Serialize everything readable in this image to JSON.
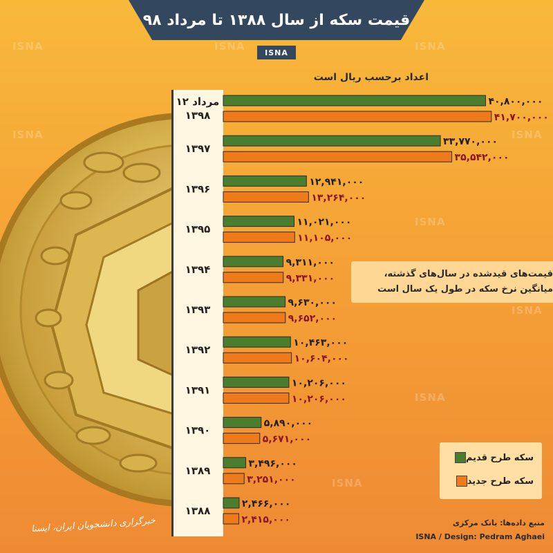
{
  "page": {
    "title": "قیمت سکه از سال ۱۳۸۸ تا مرداد ۹۸",
    "tag": "ISNA",
    "unit_note": "اعداد برحسب ریال است",
    "note_line1": "قیمت‌های قیدشده در سال‌های گذشته،",
    "note_line2": "میانگین نرخ سکه در طول یک سال است",
    "source": "منبع داده‌ها: بانک مرکزی",
    "credit": "ISNA / Design: Pedram Aghaei",
    "agency": "خبرگزاری دانشجویان ایران، ایسنا",
    "watermark": "ISNA"
  },
  "colors": {
    "old": "#4b7d2e",
    "new": "#ee7a1a",
    "old_label": "#1f1f1f",
    "new_label": "#8a1523"
  },
  "chart_data": {
    "type": "bar",
    "orientation": "horizontal",
    "unit": "Rial",
    "categories": [
      "۱۲ مرداد ۱۳۹۸",
      "۱۳۹۷",
      "۱۳۹۶",
      "۱۳۹۵",
      "۱۳۹۴",
      "۱۳۹۳",
      "۱۳۹۲",
      "۱۳۹۱",
      "۱۳۹۰",
      "۱۳۸۹",
      "۱۳۸۸"
    ],
    "category_lines": [
      [
        "۱۲ مرداد",
        "۱۳۹۸"
      ],
      [
        "۱۳۹۷"
      ],
      [
        "۱۳۹۶"
      ],
      [
        "۱۳۹۵"
      ],
      [
        "۱۳۹۴"
      ],
      [
        "۱۳۹۳"
      ],
      [
        "۱۳۹۲"
      ],
      [
        "۱۳۹۱"
      ],
      [
        "۱۳۹۰"
      ],
      [
        "۱۳۸۹"
      ],
      [
        "۱۳۸۸"
      ]
    ],
    "series": [
      {
        "name": "سکه طرح قدیم",
        "values": [
          40800000,
          33770000,
          12941000,
          11021000,
          9311000,
          9630000,
          10463000,
          10206000,
          5890000,
          3496000,
          2466000
        ],
        "labels": [
          "۴۰,۸۰۰,۰۰۰",
          "۳۳,۷۷۰,۰۰۰",
          "۱۲,۹۴۱,۰۰۰",
          "۱۱,۰۲۱,۰۰۰",
          "۹,۳۱۱,۰۰۰",
          "۹,۶۳۰,۰۰۰",
          "۱۰,۴۶۳,۰۰۰",
          "۱۰,۲۰۶,۰۰۰",
          "۵,۸۹۰,۰۰۰",
          "۳,۴۹۶,۰۰۰",
          "۲,۴۶۶,۰۰۰"
        ]
      },
      {
        "name": "سکه طرح جدید",
        "values": [
          41700000,
          35542000,
          13264000,
          11105000,
          9331000,
          9652000,
          10604000,
          10206000,
          5671000,
          3251000,
          2415000
        ],
        "labels": [
          "۴۱,۷۰۰,۰۰۰",
          "۳۵,۵۴۲,۰۰۰",
          "۱۳,۲۶۴,۰۰۰",
          "۱۱,۱۰۵,۰۰۰",
          "۹,۳۳۱,۰۰۰",
          "۹,۶۵۲,۰۰۰",
          "۱۰,۶۰۴,۰۰۰",
          "۱۰,۲۰۶,۰۰۰",
          "۵,۶۷۱,۰۰۰",
          "۳,۲۵۱,۰۰۰",
          "۲,۴۱۵,۰۰۰"
        ]
      }
    ],
    "grid": false,
    "legend_position": "bottom-right"
  }
}
